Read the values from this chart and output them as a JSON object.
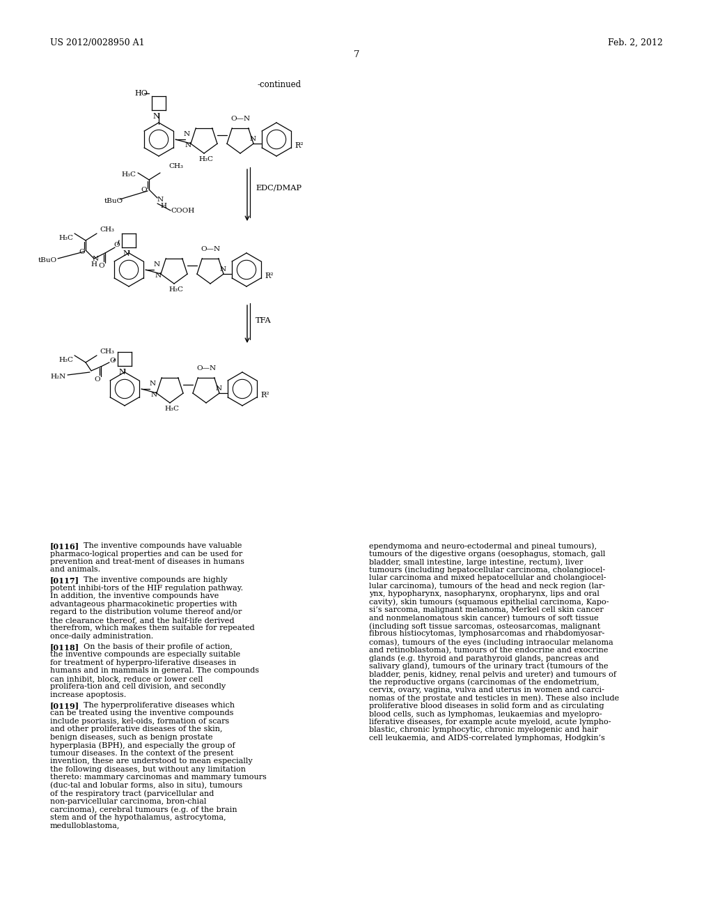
{
  "bg_color": "#ffffff",
  "header_left": "US 2012/0028950 A1",
  "header_right": "Feb. 2, 2012",
  "page_number": "7",
  "continued_text": "-continued",
  "reaction_label1": "EDC/DMAP",
  "reaction_label2": "TFA",
  "left_paragraphs": [
    {
      "tag": "[0116]",
      "body": "The inventive compounds have valuable pharmaco-logical properties and can be used for prevention and treat-ment of diseases in humans and animals."
    },
    {
      "tag": "[0117]",
      "body": "The inventive compounds are highly potent inhibi-tors of the HIF regulation pathway. In addition, the inventive compounds have advantageous pharmacokinetic properties with regard to the distribution volume thereof and/or the clearance thereof, and the half-life derived therefrom, which makes them suitable for repeated once-daily administration."
    },
    {
      "tag": "[0118]",
      "body": "On the basis of their profile of action, the inventive compounds are especially suitable for treatment of hyperpro-liferative diseases in humans and in mammals in general. The compounds can inhibit, block, reduce or lower cell prolifera-tion and cell division, and secondly increase apoptosis."
    },
    {
      "tag": "[0119]",
      "body": "The hyperproliferative diseases which can be treated using the inventive compounds include psoriasis, kel-oids, formation of scars and other proliferative diseases of the skin, benign diseases, such as benign prostate hyperplasia (BPH), and especially the group of tumour diseases. In the context of the present invention, these are understood to mean especially the following diseases, but without any limitation thereto: mammary carcinomas and mammary tumours (duc-tal and lobular forms, also in situ), tumours of the respiratory tract (parvicellular and non-parvicellular carcinoma, bron-chial carcinoma), cerebral tumours (e.g. of the brain stem and of the hypothalamus, astrocytoma, medulloblastoma,"
    }
  ],
  "right_column_lines": [
    "ependymoma and neuro-ectodermal and pineal tumours),",
    "tumours of the digestive organs (oesophagus, stomach, gall",
    "bladder, small intestine, large intestine, rectum), liver",
    "tumours (including hepatocellular carcinoma, cholangiocel-",
    "lular carcinoma and mixed hepatocellular and cholangiocel-",
    "lular carcinoma), tumours of the head and neck region (lar-",
    "ynx, hypopharynx, nasopharynx, oropharynx, lips and oral",
    "cavity), skin tumours (squamous epithelial carcinoma, Kapo-",
    "si’s sarcoma, malignant melanoma, Merkel cell skin cancer",
    "and nonmelanomatous skin cancer) tumours of soft tissue",
    "(including soft tissue sarcomas, osteosarcomas, malignant",
    "fibrous histiocytomas, lymphosarcomas and rhabdomyosar-",
    "comas), tumours of the eyes (including intraocular melanoma",
    "and retinoblastoma), tumours of the endocrine and exocrine",
    "glands (e.g. thyroid and parathyroid glands, pancreas and",
    "salivary gland), tumours of the urinary tract (tumours of the",
    "bladder, penis, kidney, renal pelvis and ureter) and tumours of",
    "the reproductive organs (carcinomas of the endometrium,",
    "cervix, ovary, vagina, vulva and uterus in women and carci-",
    "nomas of the prostate and testicles in men). These also include",
    "proliferative blood diseases in solid form and as circulating",
    "blood cells, such as lymphomas, leukaemias and myelopro-",
    "liferative diseases, for example acute myeloid, acute lympho-",
    "blastic, chronic lymphocytic, chronic myelogenic and hair",
    "cell leukaemia, and AIDS-correlated lymphomas, Hodgkin’s"
  ]
}
